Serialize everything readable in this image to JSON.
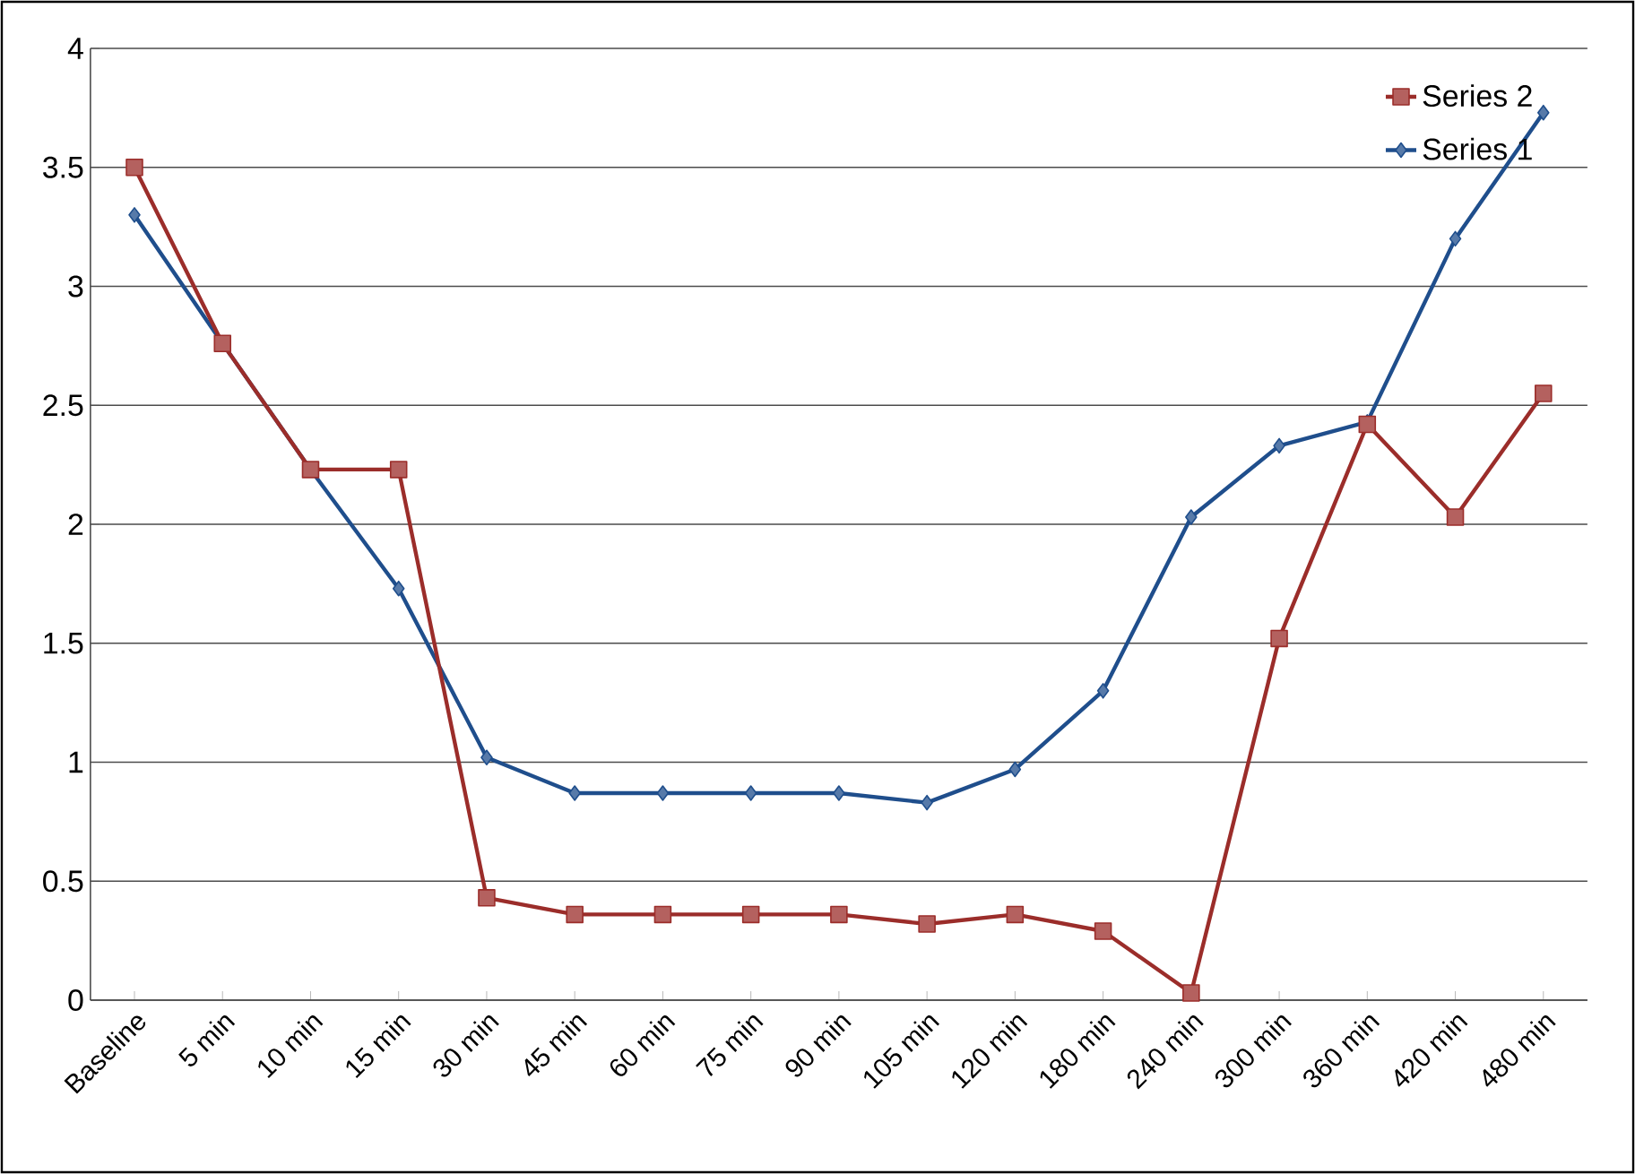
{
  "chart_data": {
    "type": "line",
    "categories": [
      "Baseline",
      "5 min",
      "10 min",
      "15 min",
      "30 min",
      "45 min",
      "60 min",
      "75 min",
      "90 min",
      "105 min",
      "120 min",
      "180 min",
      "240 min",
      "300 min",
      "360 min",
      "420 min",
      "480 min"
    ],
    "series": [
      {
        "name": "Series 2",
        "color": "#9b2d2a",
        "marker": "square",
        "values": [
          3.5,
          2.76,
          2.23,
          2.23,
          0.43,
          0.36,
          0.36,
          0.36,
          0.36,
          0.32,
          0.36,
          0.29,
          0.03,
          1.52,
          2.42,
          2.03,
          2.55
        ]
      },
      {
        "name": "Series 1",
        "color": "#1f4e8c",
        "marker": "diamond",
        "values": [
          3.3,
          2.76,
          2.23,
          1.73,
          1.02,
          0.87,
          0.87,
          0.87,
          0.87,
          0.83,
          0.97,
          1.3,
          2.03,
          2.33,
          2.43,
          3.2,
          3.73
        ]
      }
    ],
    "ylim": [
      0,
      4
    ],
    "yticks": [
      0,
      0.5,
      1,
      1.5,
      2,
      2.5,
      3,
      3.5,
      4
    ],
    "grid": "y",
    "legend": "top right",
    "line_style": "solid"
  }
}
